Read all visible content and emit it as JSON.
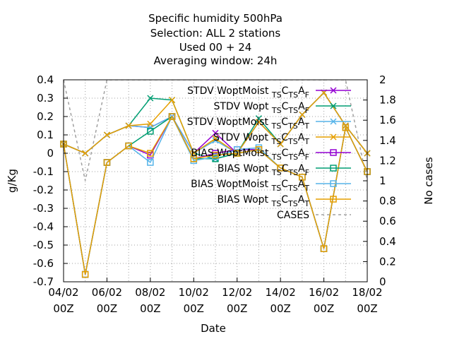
{
  "chart_data": {
    "type": "line",
    "title": [
      "Specific humidity 500hPa",
      "Selection: ALL      2 stations",
      "Used  00 + 24",
      "Averaging window: 24h"
    ],
    "xlabel": "Date",
    "ylabel": "g/Kg",
    "y2label": "No cases",
    "x_ticks": [
      {
        "l1": "04/02",
        "l2": "00Z",
        "x": 0
      },
      {
        "l1": "06/02",
        "l2": "00Z",
        "x": 2
      },
      {
        "l1": "08/02",
        "l2": "00Z",
        "x": 4
      },
      {
        "l1": "10/02",
        "l2": "00Z",
        "x": 6
      },
      {
        "l1": "12/02",
        "l2": "00Z",
        "x": 8
      },
      {
        "l1": "14/02",
        "l2": "00Z",
        "x": 10
      },
      {
        "l1": "16/02",
        "l2": "00Z",
        "x": 12
      },
      {
        "l1": "18/02",
        "l2": "00Z",
        "x": 14
      }
    ],
    "xlim": [
      0,
      14
    ],
    "ylim": [
      -0.7,
      0.4
    ],
    "y_ticks": [
      -0.7,
      -0.6,
      -0.5,
      -0.4,
      -0.3,
      -0.2,
      -0.1,
      0,
      0.1,
      0.2,
      0.3,
      0.4
    ],
    "y_tick_labels": [
      "-0.7",
      "-0.6",
      "-0.5",
      "-0.4",
      "-0.3",
      "-0.2",
      "-0.1",
      "0",
      "0.1",
      "0.2",
      "0.3",
      "0.4"
    ],
    "y2lim": [
      0,
      2
    ],
    "y2_ticks": [
      0,
      0.2,
      0.4,
      0.6,
      0.8,
      1,
      1.2,
      1.4,
      1.6,
      1.8,
      2
    ],
    "y2_tick_labels": [
      "0",
      "0.2",
      "0.4",
      "0.6",
      "0.8",
      "1",
      "1.2",
      "1.4",
      "1.6",
      "1.8",
      "2"
    ],
    "grid": true,
    "legend_position": "top-right",
    "x": [
      0,
      1,
      2,
      3,
      4,
      5,
      6,
      7,
      8,
      9,
      10,
      11,
      12,
      13,
      14
    ],
    "series": [
      {
        "name": "STDV WoptMoist",
        "sub": "TS",
        "sub2": "TS",
        "af": "F",
        "color": "#9400d3",
        "marker": "x",
        "values": [
          0.05,
          0.0,
          0.1,
          0.15,
          0.14,
          0.2,
          0.0,
          0.11,
          0.0,
          0.17,
          0.05,
          0.21,
          0.33,
          0.15,
          0.0
        ]
      },
      {
        "name": "STDV Wopt",
        "sub": "TS",
        "sub2": "TS",
        "af": "F",
        "color": "#009e73",
        "marker": "x",
        "values": [
          0.05,
          0.0,
          0.1,
          0.15,
          0.3,
          0.29,
          0.0,
          -0.03,
          0.0,
          0.19,
          0.05,
          0.21,
          0.33,
          0.15,
          0.0
        ]
      },
      {
        "name": "STDV WoptMoist",
        "sub": "TS",
        "sub2": "TS",
        "af": "T",
        "color": "#56b4e9",
        "marker": "x",
        "values": [
          0.05,
          0.0,
          0.1,
          0.15,
          0.14,
          0.2,
          0.0,
          0.07,
          0.0,
          0.17,
          0.05,
          0.21,
          0.33,
          0.15,
          0.0
        ]
      },
      {
        "name": "STDV Wopt",
        "sub": "TS",
        "sub2": "TS",
        "af": "T",
        "color": "#e69f00",
        "marker": "x",
        "values": [
          0.05,
          0.0,
          0.1,
          0.15,
          0.16,
          0.29,
          0.0,
          0.08,
          0.0,
          0.17,
          0.05,
          0.21,
          0.33,
          0.15,
          0.0
        ]
      },
      {
        "name": "BIAS WoptMoist",
        "sub": "TS",
        "sub2": "TS",
        "af": "F",
        "color": "#9400d3",
        "marker": "s",
        "values": [
          0.05,
          -0.66,
          -0.05,
          0.04,
          -0.01,
          0.2,
          -0.03,
          0.0,
          0.02,
          0.02,
          -0.08,
          -0.13,
          -0.52,
          0.14,
          -0.1
        ]
      },
      {
        "name": "BIAS Wopt",
        "sub": "TS",
        "sub2": "TS",
        "af": "F",
        "color": "#009e73",
        "marker": "s",
        "values": [
          0.05,
          -0.66,
          -0.05,
          0.04,
          0.12,
          0.2,
          -0.03,
          -0.03,
          0.0,
          0.02,
          -0.08,
          -0.13,
          -0.52,
          0.14,
          -0.1
        ]
      },
      {
        "name": "BIAS WoptMoist",
        "sub": "TS",
        "sub2": "TS",
        "af": "T",
        "color": "#56b4e9",
        "marker": "s",
        "values": [
          0.05,
          -0.66,
          -0.05,
          0.04,
          -0.05,
          0.2,
          -0.04,
          -0.02,
          0.02,
          0.03,
          -0.08,
          -0.13,
          -0.52,
          0.14,
          -0.1
        ]
      },
      {
        "name": "BIAS Wopt",
        "sub": "TS",
        "sub2": "TS",
        "af": "T",
        "color": "#e69f00",
        "marker": "s",
        "values": [
          0.05,
          -0.66,
          -0.05,
          0.04,
          0.0,
          0.2,
          -0.03,
          -0.01,
          0.0,
          0.02,
          -0.08,
          -0.13,
          -0.52,
          0.14,
          -0.1
        ]
      }
    ],
    "cases": {
      "name": "CASES",
      "color": "#a0a0a0",
      "x": [
        0,
        1,
        2,
        3,
        4,
        5,
        6,
        7,
        8,
        9,
        10,
        11,
        12,
        13,
        14
      ],
      "values": [
        2.0,
        1.0,
        2.0,
        2.0,
        2.0,
        2.0,
        2.0,
        2.0,
        2.0,
        2.0,
        2.0,
        2.0,
        2.0,
        2.0,
        1.0
      ]
    }
  }
}
